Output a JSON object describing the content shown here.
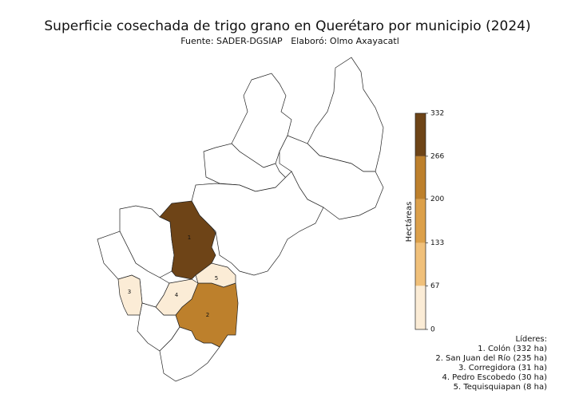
{
  "title": "Superficie cosechada de trigo grano en Querétaro por municipio (2024)",
  "source": "Fuente: SADER-DGSIAP",
  "author": "Elaboró: Olmo Axayacatl",
  "municipalities": [
    {
      "label": "1",
      "value": 332
    },
    {
      "label": "2",
      "value": 235
    },
    {
      "label": "3",
      "value": 31
    },
    {
      "label": "4",
      "value": 30
    },
    {
      "label": "5",
      "value": 8
    }
  ],
  "colorbar": {
    "label": "Hectáreas",
    "lim": [
      0,
      332
    ],
    "ticks": [
      0,
      67,
      133,
      200,
      266,
      332
    ],
    "colors": [
      "#fbecd6",
      "#f0c07a",
      "#dca04a",
      "#bd802c",
      "#6e4417"
    ]
  },
  "leaders": {
    "title": "Líderes:",
    "lines": [
      "1. Colón (332 ha)",
      "2. San Juan del Río (235 ha)",
      "3. Corregidora (31 ha)",
      "4. Pedro Escobedo (30 ha)",
      "5. Tequisquiapan (8 ha)"
    ]
  }
}
